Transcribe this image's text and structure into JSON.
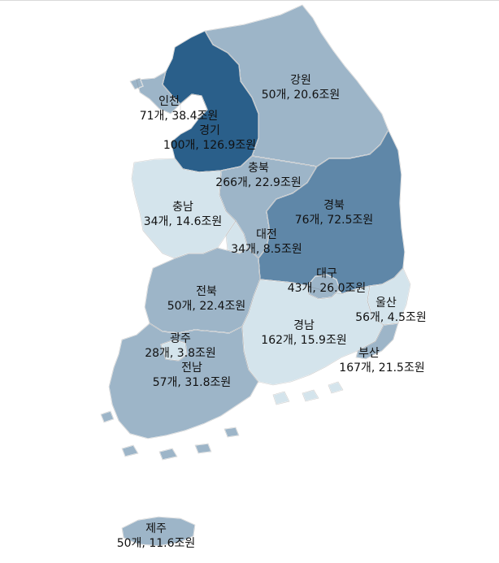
{
  "colors": {
    "lightest": "#d4e4ec",
    "light": "#9db5c8",
    "medium": "#5f87a8",
    "dark": "#2a5f8a",
    "coast": "#6e6e6e"
  },
  "regions": [
    {
      "id": "gangwon",
      "name": "강원",
      "value": "50개, 20.6조원",
      "shade": "light"
    },
    {
      "id": "incheon",
      "name": "인천",
      "value": "71개, 38.4조원",
      "shade": "light"
    },
    {
      "id": "gyeonggi",
      "name": "경기",
      "value": "100개, 126.9조원",
      "shade": "dark"
    },
    {
      "id": "chungbuk",
      "name": "충북",
      "value": "266개, 22.9조원",
      "shade": "light"
    },
    {
      "id": "chungnam",
      "name": "충남",
      "value": "34개, 14.6조원",
      "shade": "lightest"
    },
    {
      "id": "gyeongbuk",
      "name": "경북",
      "value": "76개, 72.5조원",
      "shade": "medium"
    },
    {
      "id": "daejeon",
      "name": "대전",
      "value": "34개, 8.5조원",
      "shade": "lightest"
    },
    {
      "id": "daegu",
      "name": "대구",
      "value": "43개, 26.0조원",
      "shade": "light"
    },
    {
      "id": "jeonbuk",
      "name": "전북",
      "value": "50개, 22.4조원",
      "shade": "light"
    },
    {
      "id": "ulsan",
      "name": "울산",
      "value": "56개, 4.5조원",
      "shade": "lightest"
    },
    {
      "id": "gyeongnam",
      "name": "경남",
      "value": "162개, 15.9조원",
      "shade": "lightest"
    },
    {
      "id": "gwangju",
      "name": "광주",
      "value": "28개, 3.8조원",
      "shade": "lightest"
    },
    {
      "id": "busan",
      "name": "부산",
      "value": "167개, 21.5조원",
      "shade": "light"
    },
    {
      "id": "jeonnam",
      "name": "전남",
      "value": "57개, 31.8조원",
      "shade": "light"
    },
    {
      "id": "jeju",
      "name": "제주",
      "value": "50개, 11.6조원",
      "shade": "light"
    }
  ]
}
